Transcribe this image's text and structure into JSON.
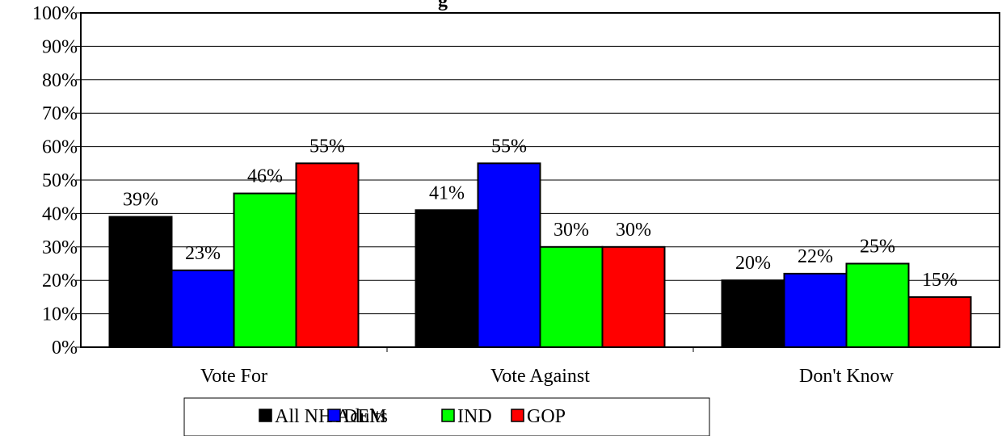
{
  "chart_data": {
    "type": "bar",
    "title": "g",
    "categories": [
      "Vote For",
      "Vote Against",
      "Don't Know"
    ],
    "series": [
      {
        "name": "All NH Adults",
        "color": "#000000",
        "values": [
          39,
          41,
          20
        ]
      },
      {
        "name": "DEM",
        "color": "#0000ff",
        "values": [
          23,
          55,
          22
        ]
      },
      {
        "name": "IND",
        "color": "#00ff00",
        "values": [
          46,
          30,
          25
        ]
      },
      {
        "name": "GOP",
        "color": "#ff0000",
        "values": [
          55,
          30,
          15
        ]
      }
    ],
    "value_suffix": "%",
    "ylim": [
      0,
      100
    ],
    "yticks": [
      0,
      10,
      20,
      30,
      40,
      50,
      60,
      70,
      80,
      90,
      100
    ],
    "grid": true,
    "legend_position": "bottom"
  }
}
